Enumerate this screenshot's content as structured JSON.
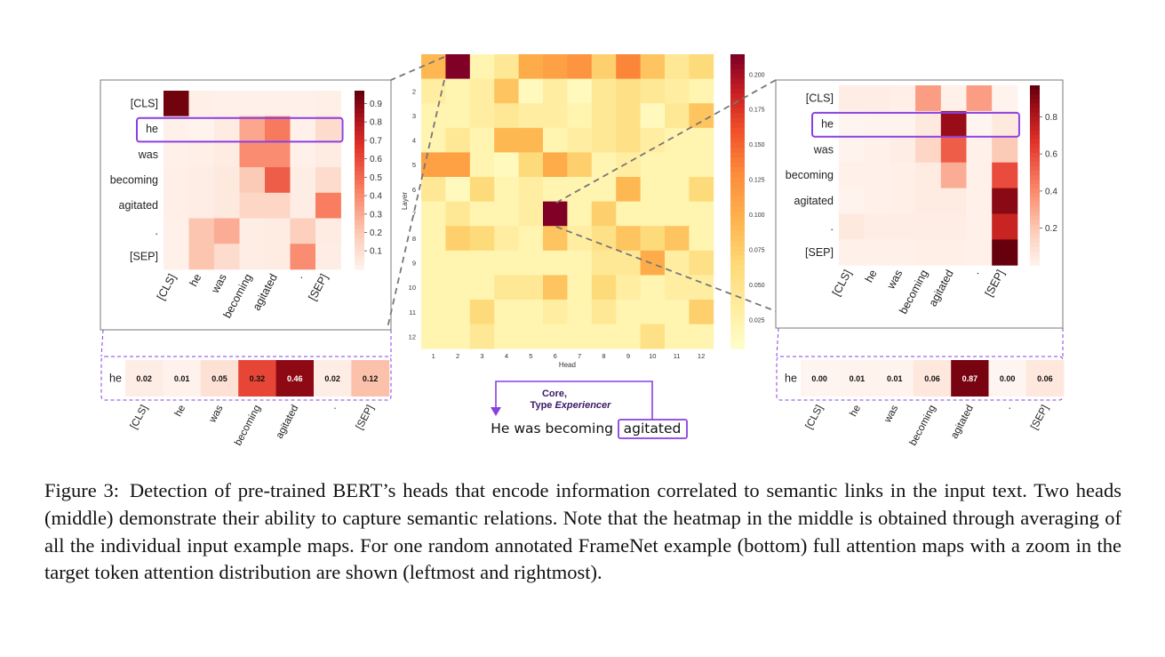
{
  "figure": {
    "tokens": [
      "[CLS]",
      "he",
      "was",
      "becoming",
      "agitated",
      ".",
      "[SEP]"
    ],
    "highlight_label": "he",
    "left_map": {
      "colorbar_ticks": [
        "0.9",
        "0.8",
        "0.7",
        "0.6",
        "0.5",
        "0.4",
        "0.3",
        "0.2",
        "0.1"
      ],
      "matrix": [
        [
          0.95,
          0.03,
          0.02,
          0.02,
          0.02,
          0.02,
          0.03
        ],
        [
          0.02,
          0.01,
          0.05,
          0.32,
          0.46,
          0.02,
          0.12
        ],
        [
          0.02,
          0.03,
          0.05,
          0.4,
          0.4,
          0.02,
          0.05
        ],
        [
          0.03,
          0.04,
          0.06,
          0.2,
          0.55,
          0.04,
          0.12
        ],
        [
          0.03,
          0.04,
          0.06,
          0.15,
          0.15,
          0.04,
          0.45
        ],
        [
          0.02,
          0.22,
          0.3,
          0.04,
          0.05,
          0.18,
          0.05
        ],
        [
          0.02,
          0.22,
          0.12,
          0.04,
          0.05,
          0.4,
          0.04
        ]
      ],
      "zoom_row": [
        0.02,
        0.01,
        0.05,
        0.32,
        0.46,
        0.02,
        0.12
      ],
      "zoom_labels": [
        "0.02",
        "0.01",
        "0.05",
        "0.32",
        "0.46",
        "0.02",
        "0.12"
      ]
    },
    "right_map": {
      "colorbar_ticks": [
        "0.8",
        "0.6",
        "0.4",
        "0.2"
      ],
      "matrix": [
        [
          0.04,
          0.04,
          0.03,
          0.35,
          0.02,
          0.35,
          0.01
        ],
        [
          0.0,
          0.01,
          0.01,
          0.06,
          0.87,
          0.0,
          0.06
        ],
        [
          0.01,
          0.02,
          0.04,
          0.15,
          0.55,
          0.02,
          0.2
        ],
        [
          0.02,
          0.02,
          0.03,
          0.05,
          0.3,
          0.02,
          0.6
        ],
        [
          0.01,
          0.02,
          0.03,
          0.05,
          0.05,
          0.02,
          0.9
        ],
        [
          0.06,
          0.04,
          0.04,
          0.04,
          0.04,
          0.02,
          0.75
        ],
        [
          0.02,
          0.02,
          0.02,
          0.03,
          0.03,
          0.02,
          0.97
        ]
      ],
      "zoom_row": [
        0.0,
        0.01,
        0.01,
        0.06,
        0.87,
        0.0,
        0.06
      ],
      "zoom_labels": [
        "0.00",
        "0.01",
        "0.01",
        "0.06",
        "0.87",
        "0.00",
        "0.06"
      ]
    },
    "middle_map": {
      "ylabel": "Layer",
      "xlabel": "Head",
      "row_labels": [
        "",
        "2",
        "3",
        "4",
        "5",
        "6",
        "7",
        "8",
        "9",
        "10",
        "11",
        "12"
      ],
      "col_labels": [
        "1",
        "2",
        "3",
        "4",
        "5",
        "6",
        "7",
        "8",
        "9",
        "10",
        "11",
        "12"
      ],
      "colorbar_ticks": [
        "0.200",
        "0.175",
        "0.150",
        "0.125",
        "0.100",
        "0.075",
        "0.050",
        "0.025"
      ],
      "vmax": 0.21,
      "matrix": [
        [
          0.09,
          0.21,
          0.02,
          0.04,
          0.1,
          0.11,
          0.12,
          0.07,
          0.13,
          0.08,
          0.04,
          0.06
        ],
        [
          0.03,
          0.02,
          0.03,
          0.08,
          0.01,
          0.03,
          0.01,
          0.04,
          0.05,
          0.04,
          0.03,
          0.02
        ],
        [
          0.02,
          0.02,
          0.03,
          0.04,
          0.03,
          0.03,
          0.02,
          0.04,
          0.05,
          0.01,
          0.04,
          0.08
        ],
        [
          0.02,
          0.04,
          0.02,
          0.09,
          0.09,
          0.02,
          0.03,
          0.04,
          0.05,
          0.03,
          0.02,
          0.02
        ],
        [
          0.11,
          0.11,
          0.02,
          0.01,
          0.06,
          0.1,
          0.07,
          0.02,
          0.03,
          0.02,
          0.02,
          0.02
        ],
        [
          0.04,
          0.01,
          0.06,
          0.02,
          0.03,
          0.02,
          0.02,
          0.02,
          0.09,
          0.02,
          0.02,
          0.06
        ],
        [
          0.02,
          0.04,
          0.02,
          0.02,
          0.03,
          0.21,
          0.02,
          0.07,
          0.02,
          0.02,
          0.02,
          0.02
        ],
        [
          0.02,
          0.07,
          0.06,
          0.03,
          0.02,
          0.08,
          0.03,
          0.05,
          0.08,
          0.06,
          0.08,
          0.02
        ],
        [
          0.02,
          0.02,
          0.02,
          0.02,
          0.02,
          0.02,
          0.02,
          0.04,
          0.04,
          0.1,
          0.03,
          0.05
        ],
        [
          0.02,
          0.02,
          0.02,
          0.04,
          0.04,
          0.08,
          0.02,
          0.06,
          0.03,
          0.02,
          0.03,
          0.03
        ],
        [
          0.02,
          0.02,
          0.06,
          0.02,
          0.02,
          0.03,
          0.02,
          0.04,
          0.02,
          0.02,
          0.02,
          0.07
        ],
        [
          0.02,
          0.02,
          0.04,
          0.02,
          0.02,
          0.02,
          0.02,
          0.02,
          0.02,
          0.05,
          0.02,
          0.02
        ]
      ]
    },
    "annotation_line1": "Core,",
    "annotation_type": "Type",
    "annotation_type_value": "Experiencer",
    "sentence_prefix": "He was becoming",
    "sentence_target": "agitated",
    "colors": {
      "highlight": "#8b3fe0",
      "connector": "#777777",
      "frame": "#7a7a7a"
    }
  },
  "caption": {
    "label": "Figure 3:",
    "text": "Detection of pre-trained BERT’s heads that encode information correlated to semantic links in the input text. Two heads (middle) demonstrate their ability to capture semantic relations. Note that the heatmap in the middle is obtained through averaging of all the individual input example maps. For one random annotated FrameNet example (bottom) full attention maps with a zoom in the target token attention distribution are shown (leftmost and rightmost)."
  }
}
